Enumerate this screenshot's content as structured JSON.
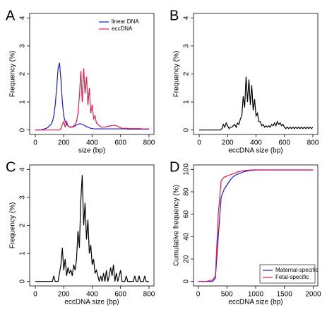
{
  "chart_data": [
    {
      "type": "line",
      "panel_label": "A",
      "xlabel": "size (bp)",
      "ylabel": "Frequency (%)",
      "legend": "top-right",
      "xlim": [
        -40,
        835
      ],
      "ylim": [
        -0.16,
        4.16
      ],
      "xticks": [
        0,
        200,
        400,
        600,
        800
      ],
      "yticks": [
        0,
        1,
        2,
        3,
        4
      ],
      "x": [
        0,
        10,
        20,
        30,
        40,
        50,
        60,
        70,
        80,
        90,
        100,
        110,
        120,
        130,
        140,
        150,
        160,
        170,
        180,
        190,
        200,
        210,
        220,
        230,
        240,
        250,
        260,
        270,
        280,
        290,
        300,
        310,
        320,
        330,
        340,
        350,
        360,
        370,
        380,
        390,
        400,
        410,
        420,
        430,
        440,
        450,
        460,
        470,
        480,
        490,
        500,
        510,
        520,
        530,
        540,
        550,
        560,
        570,
        580,
        590,
        600,
        610,
        620,
        630,
        640,
        650,
        660,
        670,
        680,
        690,
        700,
        710,
        720,
        730,
        740,
        750,
        760,
        770,
        780,
        790,
        800
      ],
      "series": [
        {
          "name": "linear DNA",
          "color": "#1a1adf",
          "values": [
            0,
            0,
            0,
            0,
            0,
            0.02,
            0.03,
            0.05,
            0.07,
            0.1,
            0.15,
            0.2,
            0.3,
            0.5,
            0.9,
            1.5,
            2.2,
            2.4,
            1.8,
            1.0,
            0.5,
            0.3,
            0.2,
            0.15,
            0.1,
            0.1,
            0.1,
            0.12,
            0.15,
            0.18,
            0.2,
            0.22,
            0.22,
            0.2,
            0.18,
            0.15,
            0.12,
            0.1,
            0.08,
            0.06,
            0.05,
            0.04,
            0.04,
            0.04,
            0.04,
            0.04,
            0.04,
            0.04,
            0.04,
            0.04,
            0.04,
            0.04,
            0.04,
            0.04,
            0.04,
            0.04,
            0.04,
            0.04,
            0.04,
            0.04,
            0.04,
            0.04,
            0.04,
            0.04,
            0.04,
            0.03,
            0.03,
            0.03,
            0.03,
            0.03,
            0.03,
            0.03,
            0.03,
            0.03,
            0.03,
            0.03,
            0.03,
            0.03,
            0.03,
            0.03,
            0.03
          ]
        },
        {
          "name": "eccDNA",
          "color": "#e8194a",
          "values": [
            0,
            0,
            0,
            0,
            0,
            0,
            0,
            0,
            0,
            0,
            0,
            0,
            0,
            0,
            0,
            0,
            0,
            0,
            0.05,
            0.2,
            0.3,
            0.1,
            0.3,
            0.15,
            0.1,
            0.12,
            0.1,
            0.15,
            0.2,
            0.3,
            0.6,
            1.2,
            2.1,
            1.0,
            2.2,
            1.3,
            1.9,
            0.9,
            1.5,
            0.6,
            0.9,
            0.4,
            0.5,
            0.25,
            0.2,
            0.15,
            0.12,
            0.1,
            0.1,
            0.1,
            0.12,
            0.13,
            0.14,
            0.15,
            0.16,
            0.17,
            0.16,
            0.15,
            0.13,
            0.1,
            0.08,
            0.06,
            0.06,
            0.06,
            0.06,
            0.06,
            0.05,
            0.05,
            0.05,
            0.05,
            0.05,
            0.05,
            0.05,
            0.05,
            0.05,
            0.04,
            0.04,
            0.04,
            0.04,
            0.04,
            0.04
          ]
        }
      ]
    },
    {
      "type": "line",
      "panel_label": "B",
      "xlabel": "eccDNA size (bp)",
      "ylabel": "Frequency (%)",
      "color": "#000000",
      "xlim": [
        -40,
        835
      ],
      "ylim": [
        -0.16,
        4.16
      ],
      "xticks": [
        0,
        200,
        400,
        600,
        800
      ],
      "yticks": [
        0,
        1,
        2,
        3,
        4
      ],
      "x": [
        0,
        10,
        20,
        30,
        40,
        50,
        60,
        70,
        80,
        90,
        100,
        110,
        120,
        130,
        140,
        150,
        160,
        170,
        180,
        190,
        200,
        210,
        220,
        230,
        240,
        250,
        260,
        270,
        280,
        290,
        300,
        310,
        320,
        330,
        340,
        350,
        360,
        370,
        380,
        390,
        400,
        410,
        420,
        430,
        440,
        450,
        460,
        470,
        480,
        490,
        500,
        510,
        520,
        530,
        540,
        550,
        560,
        570,
        580,
        590,
        600,
        610,
        620,
        630,
        640,
        650,
        660,
        670,
        680,
        690,
        700,
        710,
        720,
        730,
        740,
        750,
        760,
        770,
        780,
        790,
        800
      ],
      "values": [
        0,
        0,
        0,
        0,
        0,
        0,
        0,
        0,
        0,
        0,
        0,
        0,
        0,
        0,
        0,
        0,
        0.05,
        0.2,
        0.1,
        0.25,
        0.15,
        0.05,
        0.1,
        0.1,
        0.15,
        0.2,
        0.1,
        0.25,
        0.2,
        0.4,
        0.5,
        1.2,
        0.8,
        1.9,
        1.0,
        1.8,
        0.9,
        1.6,
        0.7,
        1.1,
        0.5,
        0.6,
        0.3,
        0.3,
        0.15,
        0.2,
        0.1,
        0.15,
        0.1,
        0.15,
        0.1,
        0.2,
        0.15,
        0.25,
        0.15,
        0.3,
        0.2,
        0.25,
        0.15,
        0.2,
        0.1,
        0.05,
        0.1,
        0.05,
        0.1,
        0.05,
        0.1,
        0.05,
        0.1,
        0.05,
        0.1,
        0.05,
        0.1,
        0.05,
        0.1,
        0.05,
        0.1,
        0.05,
        0.1,
        0.05,
        0.1
      ]
    },
    {
      "type": "line",
      "panel_label": "C",
      "xlabel": "eccDNA size (bp)",
      "ylabel": "Frequency (%)",
      "color": "#000000",
      "xlim": [
        -40,
        835
      ],
      "ylim": [
        -0.16,
        4.16
      ],
      "xticks": [
        0,
        200,
        400,
        600,
        800
      ],
      "yticks": [
        0,
        1,
        2,
        3,
        4
      ],
      "x": [
        0,
        10,
        20,
        30,
        40,
        50,
        60,
        70,
        80,
        90,
        100,
        110,
        120,
        130,
        140,
        150,
        160,
        170,
        180,
        190,
        200,
        210,
        220,
        230,
        240,
        250,
        260,
        270,
        280,
        290,
        300,
        310,
        320,
        330,
        340,
        350,
        360,
        370,
        380,
        390,
        400,
        410,
        420,
        430,
        440,
        450,
        460,
        470,
        480,
        490,
        500,
        510,
        520,
        530,
        540,
        550,
        560,
        570,
        580,
        590,
        600,
        610,
        620,
        630,
        640,
        650,
        660,
        670,
        680,
        690,
        700,
        710,
        720,
        730,
        740,
        750,
        760,
        770,
        780,
        790,
        800
      ],
      "values": [
        0,
        0,
        0,
        0,
        0,
        0,
        0,
        0,
        0,
        0,
        0,
        0,
        0,
        0.2,
        0,
        0,
        0,
        0.3,
        0.6,
        1.2,
        0.4,
        0.8,
        0.2,
        0.5,
        0.3,
        0.4,
        0.2,
        0.6,
        0.4,
        0.8,
        1.8,
        1.2,
        2.9,
        3.8,
        2.0,
        2.8,
        1.5,
        2.2,
        1.0,
        1.3,
        0.6,
        0.8,
        0.3,
        0.4,
        0.2,
        0,
        0.2,
        0,
        0.3,
        0,
        0.4,
        0,
        0.2,
        0.5,
        0.2,
        0.6,
        0,
        0.3,
        0,
        0.2,
        0.4,
        0,
        0,
        0,
        0.2,
        0,
        0,
        0,
        0,
        0,
        0.2,
        0,
        0,
        0.2,
        0,
        0,
        0,
        0.2,
        0,
        0,
        0
      ]
    },
    {
      "type": "line",
      "panel_label": "D",
      "xlabel": "eccDNA size (bp)",
      "ylabel": "Cumulative frequency (%)",
      "legend": "bottom-right",
      "xlim": [
        -80,
        2080
      ],
      "ylim": [
        -4,
        104
      ],
      "xticks": [
        0,
        500,
        1000,
        1500,
        2000
      ],
      "yticks": [
        0,
        20,
        40,
        60,
        80,
        100
      ],
      "x": [
        0,
        50,
        100,
        150,
        200,
        250,
        300,
        350,
        400,
        450,
        500,
        550,
        600,
        650,
        700,
        750,
        800,
        850,
        900,
        950,
        1000,
        1050,
        1100,
        1150,
        1200,
        1250,
        1300,
        1350,
        1400,
        1450,
        1500,
        1550,
        1600,
        1650,
        1700,
        1750,
        1800,
        1850,
        1900,
        1950,
        2000
      ],
      "series": [
        {
          "name": "Maternal-specific",
          "color": "#1a1adf",
          "values": [
            0,
            0,
            0,
            0,
            0,
            0,
            3,
            40,
            75,
            82,
            86,
            90,
            93,
            95,
            96,
            97,
            98,
            98.5,
            99,
            99.2,
            99.5,
            99.5,
            99.5,
            99.5,
            99.5,
            99.5,
            99.5,
            99.5,
            99.5,
            99.5,
            99.5,
            99.5,
            99.5,
            99.5,
            99.5,
            99.5,
            99.5,
            99.5,
            99.5,
            99.5,
            99.5
          ]
        },
        {
          "name": "Fetal-specific",
          "color": "#e8194a",
          "values": [
            0,
            0,
            0,
            0,
            1,
            1,
            5,
            60,
            90,
            93,
            94,
            95,
            96,
            97,
            98,
            98.5,
            99,
            99.2,
            99.4,
            99.5,
            99.6,
            99.6,
            99.6,
            99.6,
            99.6,
            99.6,
            99.6,
            99.6,
            99.6,
            99.6,
            99.6,
            99.6,
            99.6,
            99.6,
            99.6,
            99.6,
            99.6,
            99.6,
            99.6,
            99.6,
            99.6
          ]
        }
      ]
    }
  ]
}
